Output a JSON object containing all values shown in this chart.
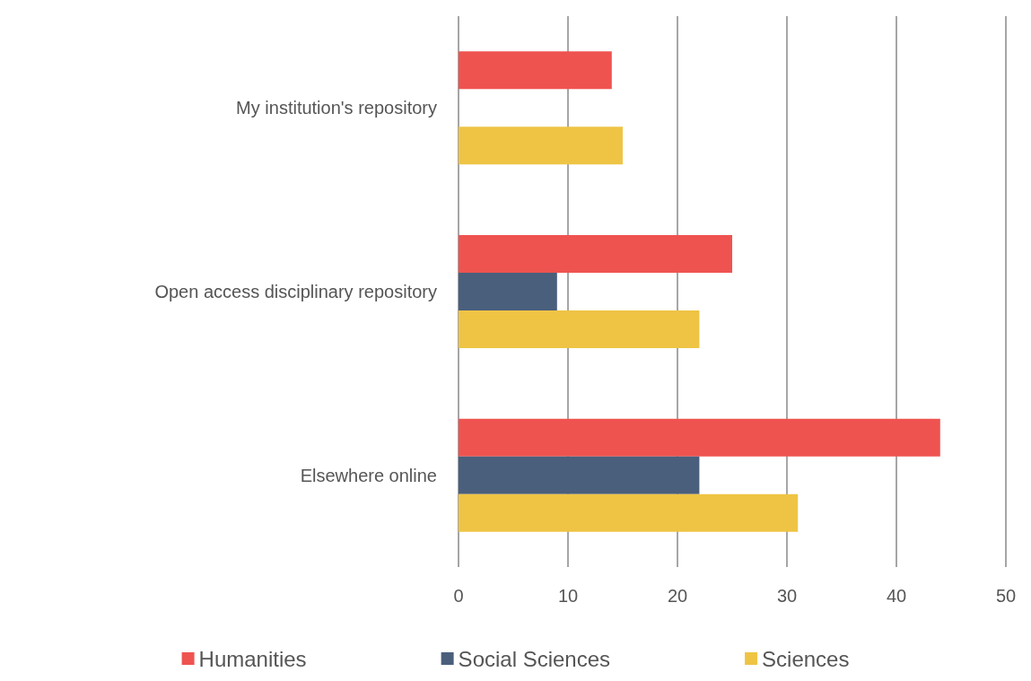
{
  "chart_data": {
    "type": "bar",
    "orientation": "horizontal",
    "categories": [
      "My institution's repository",
      "Open access disciplinary repository",
      "Elsewhere online"
    ],
    "series": [
      {
        "name": "Humanities",
        "color": "#ef5350",
        "values": [
          14,
          25,
          44
        ]
      },
      {
        "name": "Social Sciences",
        "color": "#4a5f7c",
        "values": [
          null,
          9,
          22
        ]
      },
      {
        "name": "Sciences",
        "color": "#efc445",
        "values": [
          15,
          22,
          31
        ]
      }
    ],
    "xlim": [
      0,
      50
    ],
    "xticks": [
      0,
      10,
      20,
      30,
      40,
      50
    ],
    "grid": "x",
    "legend": "bottom"
  }
}
